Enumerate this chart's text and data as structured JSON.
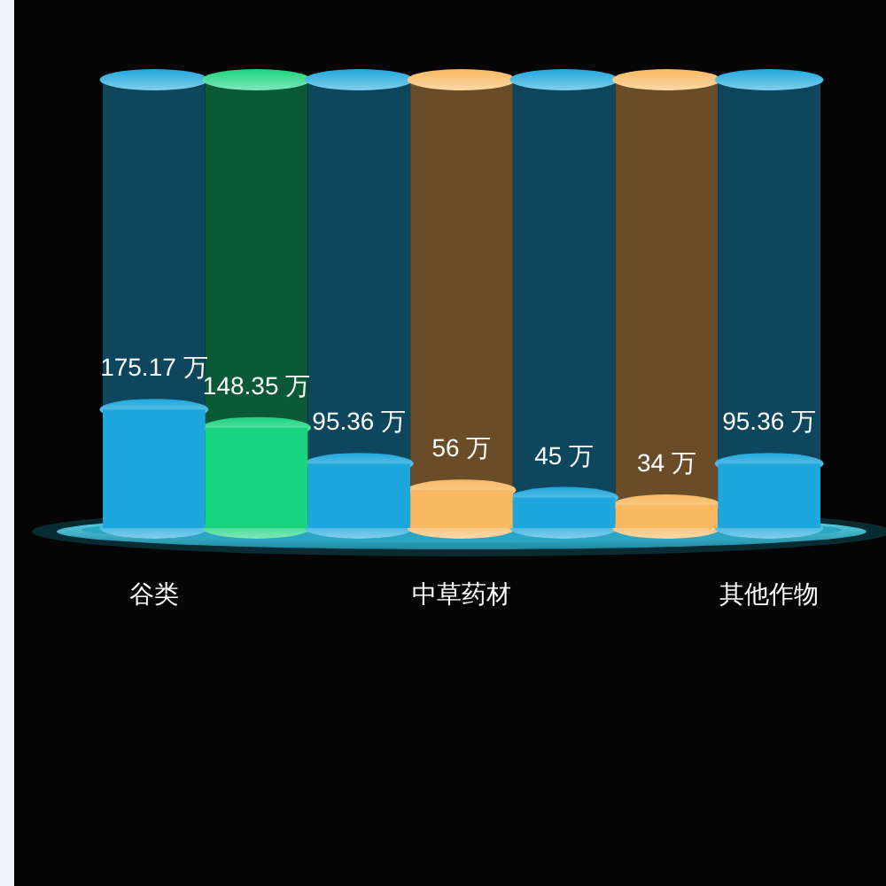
{
  "chart_data": {
    "type": "bar",
    "categories": [
      "谷类",
      null,
      null,
      "中草药材",
      null,
      null,
      "其他作物"
    ],
    "values": [
      175.17,
      148.35,
      95.36,
      56,
      45,
      34,
      95.36
    ],
    "colors": [
      "#1ea7dd",
      "#19d47f",
      "#1ea7dd",
      "#f7b860",
      "#1ea7dd",
      "#f7b860",
      "#1ea7dd"
    ],
    "value_labels": [
      "175.17 万",
      "148.35 万",
      "95.36 万",
      "56 万",
      "45 万",
      "34 万",
      "95.36 万"
    ],
    "tick_labels": "x"
  }
}
